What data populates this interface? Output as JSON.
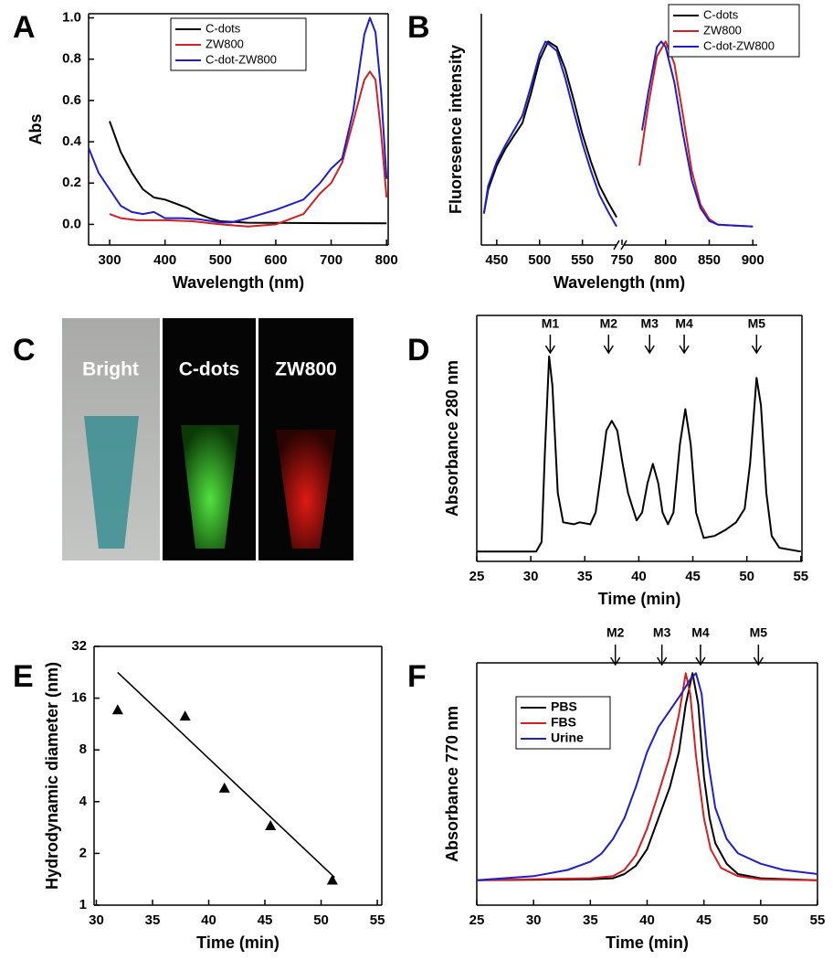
{
  "chart_data": [
    {
      "type": "line",
      "panel": "A",
      "xlabel": "Wavelength (nm)",
      "ylabel": "Abs",
      "xlim": [
        262,
        803
      ],
      "ylim": [
        -0.1,
        1.02
      ],
      "xticks": [
        300,
        400,
        500,
        600,
        700,
        800
      ],
      "yticks": [
        {
          "value": 0,
          "label": "0.0"
        },
        0.2,
        0.4,
        0.6,
        0.8,
        {
          "value": 1,
          "label": "1.0"
        }
      ],
      "frame": true,
      "legend": "upper center",
      "series": [
        {
          "name": "C-dots",
          "color": "#000000",
          "x": [
            300,
            320,
            340,
            360,
            380,
            400,
            420,
            440,
            460,
            480,
            500,
            550,
            600,
            700,
            800
          ],
          "values": [
            0.5,
            0.35,
            0.25,
            0.17,
            0.13,
            0.12,
            0.1,
            0.08,
            0.05,
            0.03,
            0.015,
            0.008,
            0.007,
            0.006,
            0.005
          ]
        },
        {
          "name": "ZW800",
          "color": "#d42020",
          "x": [
            300,
            320,
            350,
            400,
            450,
            500,
            550,
            600,
            620,
            650,
            680,
            700,
            720,
            740,
            760,
            770,
            780,
            790,
            800
          ],
          "values": [
            0.05,
            0.03,
            0.02,
            0.02,
            0.015,
            0,
            -0.01,
            0,
            0.02,
            0.05,
            0.15,
            0.2,
            0.3,
            0.5,
            0.7,
            0.74,
            0.7,
            0.45,
            0.13
          ]
        },
        {
          "name": "C-dot-ZW800",
          "color": "#1f1fc8",
          "x": [
            262,
            280,
            300,
            320,
            340,
            360,
            380,
            400,
            430,
            460,
            500,
            520,
            550,
            600,
            650,
            680,
            700,
            720,
            740,
            760,
            770,
            780,
            790,
            800
          ],
          "values": [
            0.37,
            0.25,
            0.17,
            0.09,
            0.06,
            0.05,
            0.06,
            0.03,
            0.03,
            0.025,
            0.01,
            0.01,
            0.03,
            0.07,
            0.12,
            0.2,
            0.27,
            0.32,
            0.55,
            0.92,
            1.0,
            0.93,
            0.65,
            0.22
          ]
        }
      ]
    },
    {
      "type": "line",
      "panel": "B",
      "xlabel": "Wavelength (nm)",
      "ylabel": "Fluoresence intensity",
      "xlim": [
        432,
        905
      ],
      "xbreak": [
        592,
        750
      ],
      "ylim": [
        -0.1,
        1.15
      ],
      "xticks": [
        450,
        500,
        550,
        750,
        800,
        850,
        900
      ],
      "frame": false,
      "legend": "upper right",
      "series": [
        {
          "name": "C-dots",
          "color": "#000000",
          "x": [
            435,
            440,
            450,
            460,
            470,
            480,
            490,
            500,
            510,
            520,
            530,
            540,
            550,
            560,
            570,
            580,
            590
          ],
          "values": [
            0.07,
            0.2,
            0.33,
            0.42,
            0.49,
            0.56,
            0.72,
            0.9,
            1.0,
            0.97,
            0.85,
            0.68,
            0.5,
            0.35,
            0.22,
            0.13,
            0.05
          ]
        },
        {
          "name": "ZW800",
          "color": "#d42020",
          "x": [
            770,
            780,
            790,
            800,
            810,
            820,
            830,
            840,
            850,
            860,
            900
          ],
          "values": [
            0.33,
            0.65,
            0.92,
            1.0,
            0.88,
            0.6,
            0.3,
            0.12,
            0.04,
            0.01,
            0
          ]
        },
        {
          "name": "C-dot-ZW800",
          "color": "#1f1fc8",
          "x": [
            435,
            440,
            450,
            460,
            470,
            480,
            490,
            500,
            507,
            520,
            530,
            540,
            550,
            560,
            570,
            580,
            590,
            680,
            773,
            780,
            790,
            795,
            800,
            810,
            820,
            830,
            840,
            850,
            860,
            900
          ],
          "values": [
            0.07,
            0.22,
            0.35,
            0.44,
            0.52,
            0.6,
            0.76,
            0.93,
            1.0,
            0.95,
            0.8,
            0.62,
            0.45,
            0.3,
            0.17,
            0.08,
            0.0,
            null,
            0.52,
            0.72,
            0.97,
            1.0,
            0.97,
            0.78,
            0.5,
            0.25,
            0.1,
            0.03,
            0.01,
            0
          ]
        }
      ]
    },
    {
      "type": "image",
      "panel": "C",
      "labels": [
        "Bright",
        "C-dots",
        "ZW800"
      ]
    },
    {
      "type": "line",
      "panel": "D",
      "xlabel": "Time (min)",
      "ylabel": "Absorbance 280 nm",
      "xlim": [
        25,
        55.1
      ],
      "ylim": [
        -0.05,
        1.21
      ],
      "xticks": [
        25,
        30,
        35,
        40,
        45,
        50,
        55
      ],
      "frame": true,
      "annotations": [
        {
          "text": "M1",
          "x": 31.8
        },
        {
          "text": "M2",
          "x": 37.2
        },
        {
          "text": "M3",
          "x": 41
        },
        {
          "text": "M4",
          "x": 44.2
        },
        {
          "text": "M5",
          "x": 50.9
        }
      ],
      "series": [
        {
          "color": "#000000",
          "x": [
            25,
            30.5,
            31,
            31.3,
            31.7,
            32,
            32.5,
            33,
            34,
            34.5,
            35.5,
            36,
            36.5,
            37,
            37.5,
            38,
            38.5,
            39,
            39.8,
            40.3,
            40.8,
            41.3,
            41.8,
            42.2,
            42.7,
            43.2,
            43.8,
            44.3,
            44.8,
            45.3,
            46,
            47,
            48,
            49,
            49.8,
            50.3,
            50.9,
            51.3,
            51.8,
            52.3,
            53,
            55
          ],
          "values": [
            0,
            0,
            0.05,
            0.5,
            1.0,
            0.85,
            0.3,
            0.15,
            0.14,
            0.15,
            0.14,
            0.2,
            0.4,
            0.62,
            0.67,
            0.62,
            0.45,
            0.3,
            0.16,
            0.2,
            0.35,
            0.45,
            0.35,
            0.2,
            0.14,
            0.2,
            0.55,
            0.73,
            0.55,
            0.2,
            0.07,
            0.08,
            0.11,
            0.15,
            0.22,
            0.45,
            0.89,
            0.75,
            0.3,
            0.08,
            0.02,
            0
          ]
        }
      ]
    },
    {
      "type": "scatter",
      "panel": "E",
      "xlabel": "Time (min)",
      "ylabel": "Hydrodynamic diameter (nm)",
      "xlim": [
        29.8,
        55.4
      ],
      "ylim": [
        1,
        32
      ],
      "log_y": true,
      "xticks": [
        30,
        35,
        40,
        45,
        50,
        55
      ],
      "yticks": [
        1,
        2,
        4,
        8,
        16,
        32
      ],
      "frame": true,
      "color": "#000000",
      "x": [
        31.9,
        37.9,
        41.4,
        45.5,
        51.0
      ],
      "values": [
        13.7,
        12.6,
        4.8,
        2.9,
        1.4
      ],
      "fit": {
        "x": [
          31.9,
          51.2
        ],
        "values": [
          22.6,
          1.45
        ]
      }
    },
    {
      "type": "line",
      "panel": "F",
      "xlabel": "Time (min)",
      "ylabel": "Absorbance 770 nm",
      "xlim": [
        25,
        55
      ],
      "ylim": [
        -0.12,
        1.05
      ],
      "xticks": [
        25,
        30,
        35,
        40,
        45,
        50,
        55
      ],
      "frame": true,
      "legend": "upper left",
      "annotations": [
        {
          "text": "M2",
          "x": 37.2
        },
        {
          "text": "M3",
          "x": 41.3
        },
        {
          "text": "M4",
          "x": 44.7
        },
        {
          "text": "M5",
          "x": 49.8
        }
      ],
      "series": [
        {
          "name": "PBS",
          "color": "#000000",
          "x": [
            25,
            35,
            37,
            38,
            39,
            40,
            41,
            42,
            42.8,
            43.4,
            44,
            44.5,
            45,
            45.5,
            46,
            47,
            48,
            50,
            55
          ],
          "values": [
            0,
            0.005,
            0.01,
            0.03,
            0.07,
            0.15,
            0.3,
            0.45,
            0.62,
            0.85,
            1.0,
            0.85,
            0.5,
            0.3,
            0.18,
            0.08,
            0.03,
            0.01,
            0
          ]
        },
        {
          "name": "FBS",
          "color": "#d42020",
          "x": [
            25,
            35,
            37,
            38,
            39,
            40,
            41,
            42,
            42.8,
            43.4,
            43.8,
            44.3,
            45,
            45.6,
            46.5,
            48,
            50,
            55
          ],
          "values": [
            0,
            0.01,
            0.02,
            0.05,
            0.12,
            0.25,
            0.42,
            0.6,
            0.8,
            1.0,
            0.9,
            0.6,
            0.3,
            0.15,
            0.06,
            0.02,
            0.005,
            0
          ]
        },
        {
          "name": "Urine",
          "color": "#1f1fc8",
          "x": [
            25,
            30,
            33,
            35,
            36,
            37,
            38,
            39,
            40,
            41,
            42,
            43,
            43.8,
            44.3,
            44.8,
            45.3,
            46,
            47,
            48,
            50,
            52,
            55
          ],
          "values": [
            0,
            0.02,
            0.05,
            0.09,
            0.13,
            0.2,
            0.3,
            0.45,
            0.62,
            0.74,
            0.82,
            0.9,
            0.97,
            1.0,
            0.9,
            0.6,
            0.35,
            0.2,
            0.13,
            0.08,
            0.05,
            0.03
          ]
        }
      ]
    }
  ]
}
